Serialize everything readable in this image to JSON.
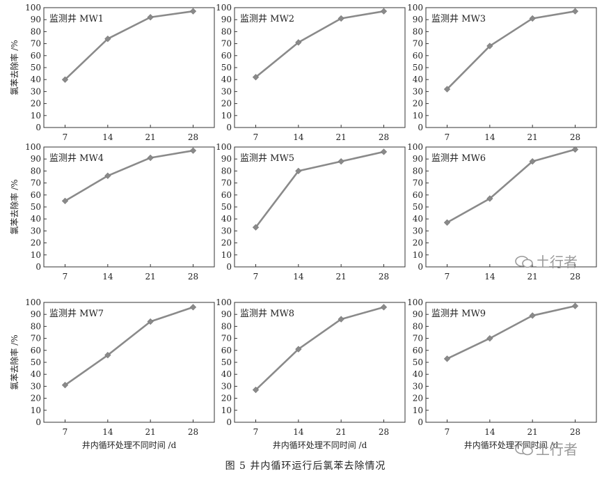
{
  "caption": "图 5   井内循环运行后氯苯去除情况",
  "watermark": "土行者",
  "y_axis_label": "氯苯去除率 /%",
  "x_axis_label": "井内循环处理不同时间 /d",
  "chart_data": [
    {
      "type": "line",
      "title": "监测井 MW1",
      "categories": [
        "7",
        "14",
        "21",
        "28"
      ],
      "values": [
        40,
        74,
        92,
        97
      ],
      "ylim": [
        0,
        100
      ],
      "yticks": [
        0,
        10,
        20,
        30,
        40,
        50,
        60,
        70,
        80,
        90,
        100
      ],
      "grid": false,
      "color": "#8a8a8a"
    },
    {
      "type": "line",
      "title": "监测井 MW2",
      "categories": [
        "7",
        "14",
        "21",
        "28"
      ],
      "values": [
        42,
        71,
        91,
        97
      ],
      "ylim": [
        0,
        100
      ],
      "yticks": [
        0,
        10,
        20,
        30,
        40,
        50,
        60,
        70,
        80,
        90,
        100
      ],
      "grid": false,
      "color": "#8a8a8a"
    },
    {
      "type": "line",
      "title": "监测井 MW3",
      "categories": [
        "7",
        "14",
        "21",
        "28"
      ],
      "values": [
        32,
        68,
        91,
        97
      ],
      "ylim": [
        0,
        100
      ],
      "yticks": [
        0,
        10,
        20,
        30,
        40,
        50,
        60,
        70,
        80,
        90,
        100
      ],
      "grid": false,
      "color": "#8a8a8a"
    },
    {
      "type": "line",
      "title": "监测井 MW4",
      "categories": [
        "7",
        "14",
        "21",
        "28"
      ],
      "values": [
        55,
        76,
        91,
        97
      ],
      "ylim": [
        0,
        100
      ],
      "yticks": [
        0,
        10,
        20,
        30,
        40,
        50,
        60,
        70,
        80,
        90,
        100
      ],
      "grid": false,
      "color": "#8a8a8a"
    },
    {
      "type": "line",
      "title": "监测井 MW5",
      "categories": [
        "7",
        "14",
        "21",
        "28"
      ],
      "values": [
        33,
        80,
        88,
        96
      ],
      "ylim": [
        0,
        100
      ],
      "yticks": [
        0,
        10,
        20,
        30,
        40,
        50,
        60,
        70,
        80,
        90,
        100
      ],
      "grid": false,
      "color": "#8a8a8a"
    },
    {
      "type": "line",
      "title": "监测井 MW6",
      "categories": [
        "7",
        "14",
        "21",
        "28"
      ],
      "values": [
        37,
        57,
        88,
        98
      ],
      "ylim": [
        0,
        100
      ],
      "yticks": [
        0,
        10,
        20,
        30,
        40,
        50,
        60,
        70,
        80,
        90,
        100
      ],
      "grid": false,
      "color": "#8a8a8a"
    },
    {
      "type": "line",
      "title": "监测井 MW7",
      "categories": [
        "7",
        "14",
        "21",
        "28"
      ],
      "values": [
        31,
        56,
        84,
        96
      ],
      "ylim": [
        0,
        100
      ],
      "yticks": [
        0,
        10,
        20,
        30,
        40,
        50,
        60,
        70,
        80,
        90,
        100
      ],
      "grid": false,
      "color": "#8a8a8a"
    },
    {
      "type": "line",
      "title": "监测井 MW8",
      "categories": [
        "7",
        "14",
        "21",
        "28"
      ],
      "values": [
        27,
        61,
        86,
        96
      ],
      "ylim": [
        0,
        100
      ],
      "yticks": [
        0,
        10,
        20,
        30,
        40,
        50,
        60,
        70,
        80,
        90,
        100
      ],
      "grid": false,
      "color": "#8a8a8a"
    },
    {
      "type": "line",
      "title": "监测井 MW9",
      "categories": [
        "7",
        "14",
        "21",
        "28"
      ],
      "values": [
        53,
        70,
        89,
        97
      ],
      "ylim": [
        0,
        100
      ],
      "yticks": [
        0,
        10,
        20,
        30,
        40,
        50,
        60,
        70,
        80,
        90,
        100
      ],
      "grid": false,
      "color": "#8a8a8a"
    }
  ]
}
